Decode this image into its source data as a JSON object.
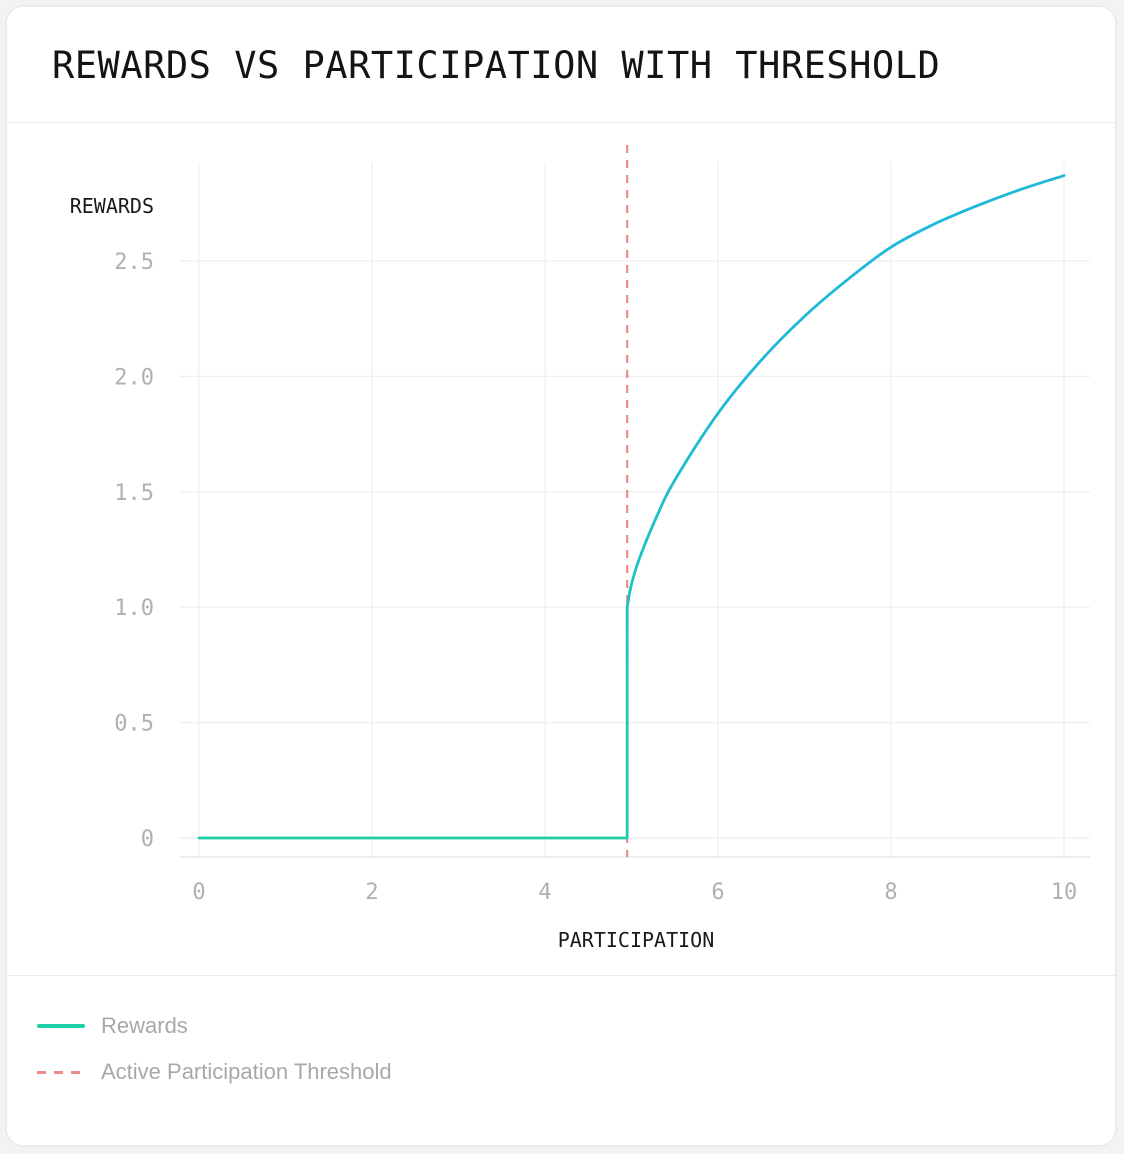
{
  "title": "REWARDS VS PARTICIPATION WITH THRESHOLD",
  "legend": [
    {
      "label": "Rewards",
      "style": "solid",
      "color": "#1ecfa6"
    },
    {
      "label": "Active Participation Threshold",
      "style": "dashed",
      "color": "#ef8a8a"
    }
  ],
  "chart_data": {
    "type": "line",
    "title": "REWARDS VS PARTICIPATION WITH THRESHOLD",
    "xlabel": "PARTICIPATION",
    "ylabel": "REWARDS",
    "xlim": [
      0,
      10
    ],
    "ylim": [
      0,
      2.8
    ],
    "x_ticks": [
      0,
      2,
      4,
      6,
      8,
      10
    ],
    "x_tick_labels": [
      "0",
      "2",
      "4",
      "6",
      "8",
      "10"
    ],
    "y_ticks": [
      0,
      0.5,
      1.0,
      1.5,
      2.0,
      2.5
    ],
    "y_tick_labels": [
      "0",
      "0.5",
      "1.0",
      "1.5",
      "2.0",
      "2.5"
    ],
    "grid": true,
    "legend_position": "bottom-left",
    "series": [
      {
        "name": "Rewards",
        "colors": [
          "#1ecfa6",
          "#1eb8d8"
        ],
        "x": [
          0,
          4.95,
          4.95,
          5.0,
          5.1,
          5.3,
          5.5,
          6.0,
          6.5,
          7.0,
          7.5,
          8.0,
          8.5,
          9.0,
          9.5,
          10.0
        ],
        "y": [
          0,
          0,
          1.0,
          1.1,
          1.22,
          1.4,
          1.55,
          1.84,
          2.07,
          2.26,
          2.42,
          2.56,
          2.66,
          2.74,
          2.81,
          2.87
        ]
      }
    ],
    "threshold": {
      "name": "Active Participation Threshold",
      "x": 4.95,
      "color": "#ef8a8a",
      "style": "dashed"
    }
  }
}
